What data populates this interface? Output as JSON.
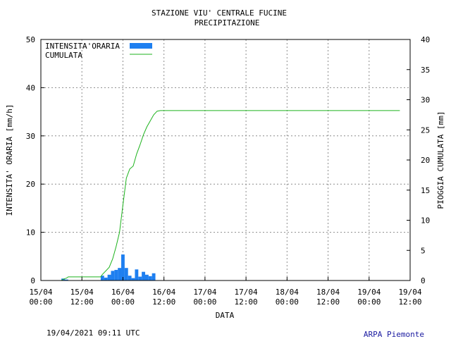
{
  "chart_data": {
    "type": "bar+line",
    "title": "STAZIONE VIU' CENTRALE FUCINE",
    "subtitle": "PRECIPITAZIONE",
    "xlabel": "DATA",
    "ylabel_left": "INTENSITA' ORARIA [mm/h]",
    "ylabel_right": "PIOGGIA CUMULATA [mm]",
    "ylim_left": [
      0,
      50
    ],
    "ylim_right": [
      0,
      40
    ],
    "yticks_left": [
      0,
      10,
      20,
      30,
      40,
      50
    ],
    "yticks_right": [
      0,
      5,
      10,
      15,
      20,
      25,
      30,
      35,
      40
    ],
    "xlim_hours": [
      0,
      108
    ],
    "xticks": [
      {
        "h": 0,
        "date": "15/04",
        "time": "00:00"
      },
      {
        "h": 12,
        "date": "15/04",
        "time": "12:00"
      },
      {
        "h": 24,
        "date": "16/04",
        "time": "00:00"
      },
      {
        "h": 36,
        "date": "16/04",
        "time": "12:00"
      },
      {
        "h": 48,
        "date": "17/04",
        "time": "00:00"
      },
      {
        "h": 60,
        "date": "17/04",
        "time": "12:00"
      },
      {
        "h": 72,
        "date": "18/04",
        "time": "00:00"
      },
      {
        "h": 84,
        "date": "18/04",
        "time": "12:00"
      },
      {
        "h": 96,
        "date": "19/04",
        "time": "00:00"
      },
      {
        "h": 108,
        "date": "19/04",
        "time": "12:00"
      }
    ],
    "grid": true,
    "legend_position": "top-left",
    "series": [
      {
        "name": "INTENSITA'ORARIA",
        "kind": "bar",
        "color": "#1e7ff0",
        "hours": [
          6.5,
          7.5,
          18,
          19,
          20,
          21,
          22,
          23,
          24,
          25,
          26,
          27,
          28,
          29,
          30,
          31,
          32,
          33
        ],
        "values": [
          0.4,
          0.2,
          1.0,
          0.6,
          1.2,
          2.0,
          2.2,
          2.6,
          5.4,
          2.6,
          1.0,
          0.5,
          2.3,
          0.8,
          1.8,
          1.2,
          0.9,
          1.5
        ]
      },
      {
        "name": "CUMULATA",
        "kind": "line",
        "color": "#1db31d",
        "hours": [
          6,
          6.5,
          7.5,
          8,
          17.5,
          18,
          19,
          20,
          21,
          22,
          23,
          24,
          25,
          26,
          27,
          28,
          29,
          30,
          31,
          32,
          33,
          34,
          35,
          36,
          48,
          60,
          72,
          84,
          96,
          105
        ],
        "values": [
          0,
          0.2,
          0.4,
          0.6,
          0.6,
          1.0,
          1.6,
          2.2,
          3.6,
          5.6,
          8.0,
          12.5,
          17.0,
          18.5,
          19.0,
          21.0,
          22.5,
          24.2,
          25.5,
          26.5,
          27.5,
          28.1,
          28.2,
          28.2,
          28.2,
          28.2,
          28.2,
          28.2,
          28.2,
          28.2
        ]
      }
    ]
  },
  "footer": {
    "timestamp": "19/04/2021 09:11 UTC",
    "source": "ARPA Piemonte"
  }
}
